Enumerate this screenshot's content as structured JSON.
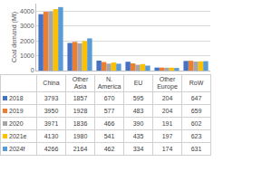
{
  "chart_data": {
    "type": "bar",
    "y_label": "Coal demand (Mt)",
    "categories": [
      "China",
      "Other Asia",
      "N. America",
      "EU",
      "Other Europe",
      "RoW"
    ],
    "series": [
      {
        "name": "2018",
        "color": "#4472c4",
        "values": [
          3793,
          1857,
          670,
          595,
          204,
          647
        ]
      },
      {
        "name": "2019",
        "color": "#ed7d31",
        "values": [
          3950,
          1928,
          577,
          483,
          204,
          659
        ]
      },
      {
        "name": "2020",
        "color": "#a5a5a5",
        "values": [
          3971,
          1836,
          466,
          390,
          191,
          602
        ]
      },
      {
        "name": "2021e",
        "color": "#ffc000",
        "values": [
          4130,
          1980,
          541,
          435,
          197,
          623
        ]
      },
      {
        "name": "2024f",
        "color": "#5b9bd5",
        "values": [
          4266,
          2164,
          462,
          334,
          174,
          631
        ]
      }
    ],
    "ylim": [
      0,
      4500
    ],
    "yticks": [
      0,
      1000,
      2000,
      3000,
      4000
    ],
    "grid": true,
    "tick_labels": "y"
  }
}
